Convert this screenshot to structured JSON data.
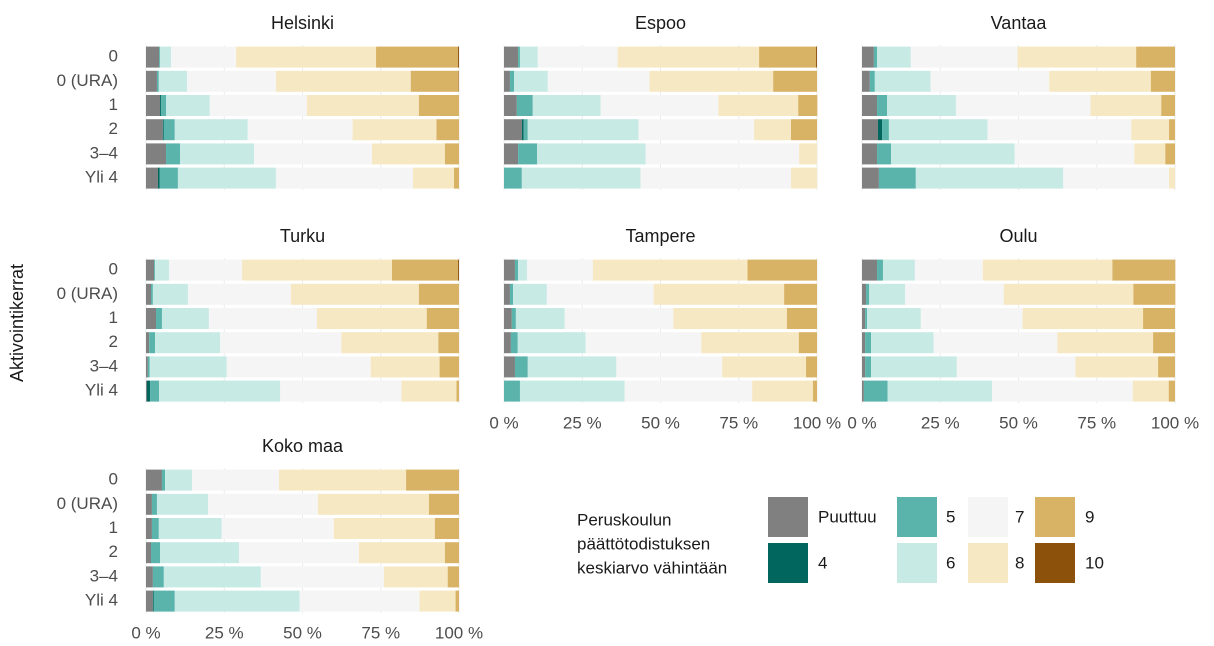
{
  "y_label": "Aktivointikerrat",
  "categories": [
    "0",
    "0 (URA)",
    "1",
    "2",
    "3–4",
    "Yli 4"
  ],
  "xlim": [
    0,
    100
  ],
  "xticks": [
    {
      "value": 0,
      "label": "0 %"
    },
    {
      "value": 25,
      "label": "25 %"
    },
    {
      "value": 50,
      "label": "50 %"
    },
    {
      "value": 75,
      "label": "75 %"
    },
    {
      "value": 100,
      "label": "100 %"
    }
  ],
  "grid": true,
  "legend": {
    "title": [
      "Peruskoulun",
      "päättötodistuksen",
      "keskiarvo vähintään"
    ],
    "series": [
      {
        "name": "Puuttuu",
        "color": "#808080"
      },
      {
        "name": "4",
        "color": "#01665e"
      },
      {
        "name": "5",
        "color": "#5ab4ac"
      },
      {
        "name": "6",
        "color": "#c7eae5"
      },
      {
        "name": "7",
        "color": "#f5f5f5"
      },
      {
        "name": "8",
        "color": "#f6e8c3"
      },
      {
        "name": "9",
        "color": "#d8b365"
      },
      {
        "name": "10",
        "color": "#8c510a"
      }
    ]
  },
  "chart_data": [
    {
      "type": "bar",
      "stacked": true,
      "orientation": "horizontal",
      "title": "Helsinki",
      "show_categories": true,
      "show_xticks": false,
      "series": [
        {
          "values": [
            4.2,
            3.5,
            4.5,
            5.4,
            6.4,
            3.8
          ]
        },
        {
          "values": [
            0,
            0,
            0.3,
            0.3,
            0,
            0.6
          ]
        },
        {
          "values": [
            0.3,
            0.6,
            1.6,
            3.5,
            4.5,
            5.8
          ]
        },
        {
          "values": [
            3.5,
            9,
            14,
            23.3,
            23.6,
            31.3
          ]
        },
        {
          "values": [
            20.8,
            28.4,
            31,
            33.5,
            37.7,
            43.8
          ]
        },
        {
          "values": [
            44.7,
            43.1,
            35.8,
            26.8,
            23.3,
            13.1
          ]
        },
        {
          "values": [
            26.2,
            15.3,
            12.8,
            7.2,
            4.5,
            1.6
          ]
        },
        {
          "values": [
            0.3,
            0.1,
            0,
            0,
            0,
            0
          ]
        }
      ]
    },
    {
      "type": "bar",
      "stacked": true,
      "orientation": "horizontal",
      "title": "Espoo",
      "show_categories": false,
      "show_xticks": false,
      "series": [
        {
          "values": [
            4.5,
            1.9,
            4.1,
            5.7,
            4.5,
            0
          ]
        },
        {
          "values": [
            0,
            0,
            0,
            0.6,
            0,
            0
          ]
        },
        {
          "values": [
            0.6,
            1.3,
            5.1,
            1.3,
            6.1,
            5.7
          ]
        },
        {
          "values": [
            5.7,
            10.8,
            21.7,
            35.4,
            34.7,
            37.9
          ]
        },
        {
          "values": [
            25.5,
            32.5,
            37.6,
            36.9,
            49,
            48.1
          ]
        },
        {
          "values": [
            45.2,
            39.5,
            25.5,
            11.8,
            5.7,
            8.3
          ]
        },
        {
          "values": [
            18.2,
            14,
            6.1,
            8.3,
            0,
            0
          ]
        },
        {
          "values": [
            0.3,
            0,
            0,
            0,
            0,
            0
          ]
        }
      ]
    },
    {
      "type": "bar",
      "stacked": true,
      "orientation": "horizontal",
      "title": "Vantaa",
      "show_categories": false,
      "show_xticks": false,
      "series": [
        {
          "values": [
            3.8,
            2.5,
            4.8,
            5.1,
            4.8,
            5.4
          ]
        },
        {
          "values": [
            0,
            0,
            0,
            1.3,
            0,
            0
          ]
        },
        {
          "values": [
            1,
            1.6,
            3.2,
            2.2,
            4.5,
            11.8
          ]
        },
        {
          "values": [
            10.8,
            17.8,
            22,
            31.5,
            39.5,
            47.1
          ]
        },
        {
          "values": [
            34.1,
            37.9,
            43,
            45.9,
            38.2,
            33.8
          ]
        },
        {
          "values": [
            37.9,
            32.5,
            22.6,
            12.1,
            9.9,
            1.9
          ]
        },
        {
          "values": [
            12.4,
            7.7,
            4.4,
            1.9,
            3.1,
            0
          ]
        },
        {
          "values": [
            0,
            0,
            0,
            0,
            0,
            0
          ]
        }
      ]
    },
    {
      "type": "bar",
      "stacked": true,
      "orientation": "horizontal",
      "title": "Turku",
      "show_categories": true,
      "show_xticks": false,
      "series": [
        {
          "values": [
            2.6,
            1.6,
            3.2,
            1,
            0.6,
            0.3
          ]
        },
        {
          "values": [
            0,
            0,
            0,
            0,
            0,
            1
          ]
        },
        {
          "values": [
            0.3,
            0.6,
            1.9,
            1.9,
            0.6,
            2.9
          ]
        },
        {
          "values": [
            4.5,
            11.2,
            15,
            20.8,
            24.6,
            38.7
          ]
        },
        {
          "values": [
            23.3,
            32.9,
            34.5,
            38.7,
            46,
            38.7
          ]
        },
        {
          "values": [
            47.9,
            40.9,
            35.1,
            31,
            22,
            17.6
          ]
        },
        {
          "values": [
            21.1,
            12.8,
            10.3,
            6.6,
            6.2,
            0.8
          ]
        },
        {
          "values": [
            0.3,
            0,
            0,
            0,
            0,
            0
          ]
        }
      ]
    },
    {
      "type": "bar",
      "stacked": true,
      "orientation": "horizontal",
      "title": "Tampere",
      "show_categories": false,
      "show_xticks": true,
      "series": [
        {
          "values": [
            3.5,
            1.9,
            2.5,
            2.2,
            3.5,
            0
          ]
        },
        {
          "values": [
            0,
            0,
            0,
            0,
            0,
            0
          ]
        },
        {
          "values": [
            1,
            1,
            1.3,
            2.2,
            4.1,
            5.1
          ]
        },
        {
          "values": [
            2.9,
            10.8,
            15.6,
            21.7,
            28.3,
            33.4
          ]
        },
        {
          "values": [
            21,
            34.1,
            34.7,
            36.9,
            33.8,
            40.8
          ]
        },
        {
          "values": [
            49.4,
            41.7,
            36.3,
            31.2,
            26.8,
            19.4
          ]
        },
        {
          "values": [
            22.2,
            10.5,
            9.6,
            5.8,
            3.5,
            1.3
          ]
        },
        {
          "values": [
            0,
            0,
            0,
            0,
            0,
            0
          ]
        }
      ]
    },
    {
      "type": "bar",
      "stacked": true,
      "orientation": "horizontal",
      "title": "Oulu",
      "show_categories": false,
      "show_xticks": true,
      "series": [
        {
          "values": [
            4.8,
            1.3,
            1,
            1,
            1,
            0.6
          ]
        },
        {
          "values": [
            0,
            0,
            0,
            0,
            0,
            0
          ]
        },
        {
          "values": [
            1.9,
            1,
            0.6,
            1.9,
            1.9,
            7.6
          ]
        },
        {
          "values": [
            10.2,
            11.5,
            17.2,
            20,
            27.4,
            33.4
          ]
        },
        {
          "values": [
            21.7,
            31.5,
            32.5,
            39.5,
            37.9,
            44.9
          ]
        },
        {
          "values": [
            41.4,
            41.4,
            38.5,
            30.6,
            26.4,
            11.5
          ]
        },
        {
          "values": [
            20.1,
            13.4,
            10.2,
            7,
            5.4,
            2
          ]
        },
        {
          "values": [
            0,
            0,
            0,
            0,
            0,
            0
          ]
        }
      ]
    },
    {
      "type": "bar",
      "stacked": true,
      "orientation": "horizontal",
      "title": "Koko maa",
      "show_categories": true,
      "show_xticks": true,
      "series": [
        {
          "values": [
            5.1,
            1.9,
            1.9,
            1.6,
            2.2,
            2.2
          ]
        },
        {
          "values": [
            0,
            0,
            0,
            0,
            0,
            0.3
          ]
        },
        {
          "values": [
            1,
            1.6,
            2.2,
            2.9,
            3.5,
            6.7
          ]
        },
        {
          "values": [
            8.6,
            16.3,
            20.1,
            25.2,
            31,
            39.9
          ]
        },
        {
          "values": [
            27.8,
            35.1,
            35.8,
            38.3,
            39.3,
            38.3
          ]
        },
        {
          "values": [
            40.6,
            35.5,
            32.3,
            27.5,
            20.4,
            11.5
          ]
        },
        {
          "values": [
            16.9,
            9.6,
            7.7,
            4.5,
            3.6,
            1.1
          ]
        },
        {
          "values": [
            0,
            0,
            0,
            0,
            0,
            0
          ]
        }
      ]
    }
  ]
}
